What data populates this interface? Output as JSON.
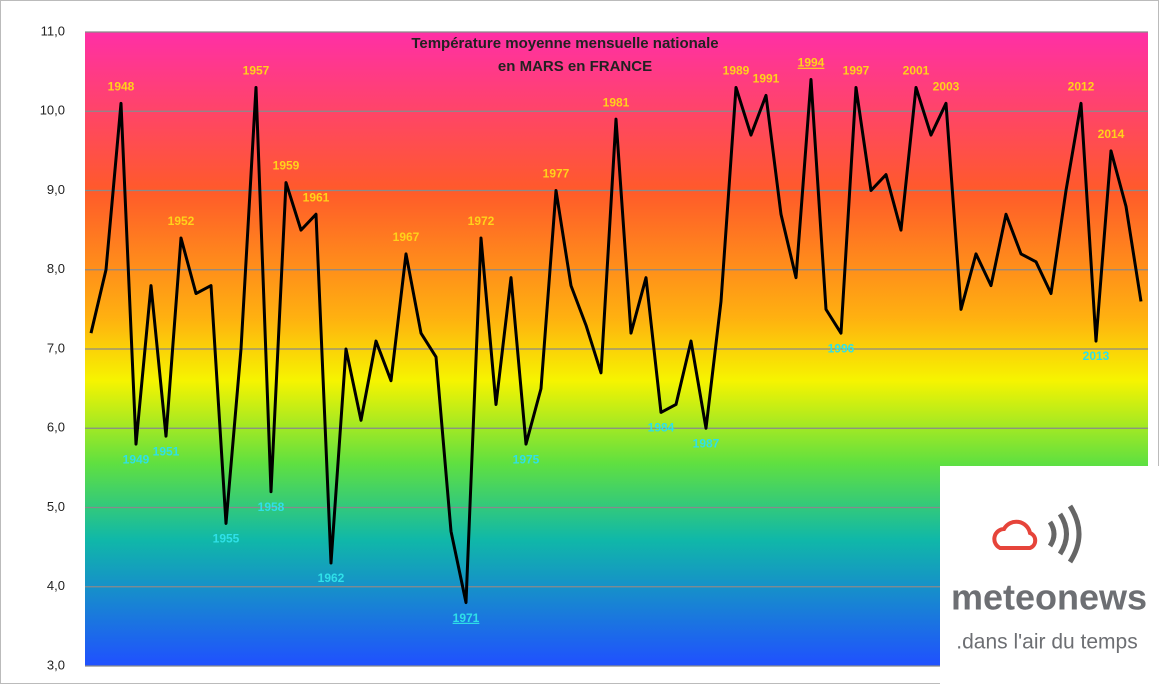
{
  "chart_data": {
    "type": "line",
    "title_lines": [
      "Température moyenne mensuelle nationale",
      "en MARS en FRANCE"
    ],
    "categories": [
      null,
      null,
      "1948",
      "1949",
      null,
      "1951",
      "1952",
      null,
      null,
      "1955",
      null,
      "1957",
      "1958",
      "1959",
      null,
      "1961",
      "1962",
      null,
      null,
      null,
      null,
      "1967",
      null,
      null,
      null,
      "1971",
      "1972",
      null,
      null,
      "1975",
      null,
      "1977",
      null,
      null,
      null,
      "1981",
      null,
      null,
      "1984",
      null,
      null,
      "1987",
      null,
      "1989",
      null,
      "1991",
      null,
      null,
      "1994",
      null,
      "1996",
      "1997",
      null,
      null,
      null,
      "2001",
      null,
      "2003",
      null,
      null,
      null,
      null,
      null,
      null,
      null,
      null,
      "2012",
      "2013",
      "2014",
      null,
      null
    ],
    "values": [
      7.2,
      8.0,
      10.1,
      5.8,
      7.8,
      5.9,
      8.4,
      7.7,
      7.8,
      4.8,
      7.0,
      10.3,
      5.2,
      9.1,
      8.5,
      8.7,
      4.3,
      7.0,
      6.1,
      7.1,
      6.6,
      8.2,
      7.2,
      6.9,
      4.7,
      3.8,
      8.4,
      6.3,
      7.9,
      5.8,
      6.5,
      9.0,
      7.8,
      7.3,
      6.7,
      9.9,
      7.2,
      7.9,
      6.2,
      6.3,
      7.1,
      6.0,
      7.6,
      10.3,
      9.7,
      10.2,
      8.7,
      7.9,
      10.4,
      7.5,
      7.2,
      10.3,
      9.0,
      9.2,
      8.5,
      10.3,
      9.7,
      10.1,
      7.5,
      8.2,
      7.8,
      8.7,
      8.2,
      8.1,
      7.7,
      9.0,
      10.1,
      7.1,
      9.5,
      8.8,
      7.6
    ],
    "color": "#000000",
    "high_label_color": "#ffd21a",
    "low_label_color": "#2fe0e8",
    "ylim": [
      3,
      11
    ],
    "yticks": [
      {
        "value": 3,
        "label": "3,0"
      },
      {
        "value": 4,
        "label": "4,0"
      },
      {
        "value": 5,
        "label": "5,0"
      },
      {
        "value": 6,
        "label": "6,0"
      },
      {
        "value": 7,
        "label": "7,0"
      },
      {
        "value": 8,
        "label": "8,0"
      },
      {
        "value": 9,
        "label": "9,0"
      },
      {
        "value": 10,
        "label": "10,0"
      },
      {
        "value": 11,
        "label": "11,0"
      }
    ],
    "grid": true
  },
  "logo": {
    "name": "meteonews",
    "tagline": ".dans l'air du temps"
  }
}
